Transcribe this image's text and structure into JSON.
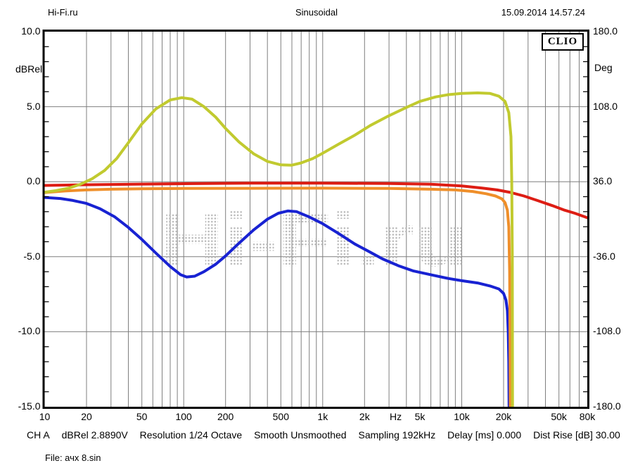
{
  "header": {
    "site": "Hi-Fi.ru",
    "measurement": "Sinusoidal",
    "datetime": "15.09.2014 14.57.24"
  },
  "clio_badge": "CLIO",
  "watermark": {
    "text": "Hi-Fi.ru",
    "color": "#b7b7b7"
  },
  "status_bar": {
    "fields": [
      "CH A",
      "dBRel 2.8890V",
      "Resolution 1/24 Octave",
      "Smooth Unsmoothed",
      "Sampling 192kHz",
      "Delay [ms] 0.000",
      "Dist Rise [dB] 30.00"
    ]
  },
  "file_line": "File: ачх 8.sin",
  "chart_data": {
    "type": "line",
    "x_scale": "log",
    "grid": true,
    "legend": "none",
    "colors": {
      "grid": "#7f7f7f",
      "frame": "#000000"
    },
    "x_axis": {
      "unit": "Hz",
      "min": 10,
      "max": 80000,
      "ticks": [
        {
          "f": 10,
          "label": "10"
        },
        {
          "f": 20,
          "label": "20"
        },
        {
          "f": 50,
          "label": "50"
        },
        {
          "f": 100,
          "label": "100"
        },
        {
          "f": 200,
          "label": "200"
        },
        {
          "f": 500,
          "label": "500"
        },
        {
          "f": 1000,
          "label": "1k"
        },
        {
          "f": 2000,
          "label": "2k"
        },
        {
          "f": 3350,
          "label": "Hz",
          "unit": true
        },
        {
          "f": 5000,
          "label": "5k"
        },
        {
          "f": 10000,
          "label": "10k"
        },
        {
          "f": 20000,
          "label": "20k"
        },
        {
          "f": 50000,
          "label": "50k"
        },
        {
          "f": 80000,
          "label": "80k"
        }
      ]
    },
    "left_axis": {
      "unit": "dBRel",
      "min": -15,
      "max": 10,
      "ticks": [
        {
          "value": 10,
          "label": "10.0"
        },
        {
          "value": 5,
          "label": "5.0"
        },
        {
          "value": 0,
          "label": "0.0"
        },
        {
          "value": -5,
          "label": "-5.0"
        },
        {
          "value": -10,
          "label": "-10.0"
        },
        {
          "value": -15,
          "label": "-15.0"
        }
      ]
    },
    "right_axis": {
      "unit": "Deg",
      "min": -180,
      "max": 180,
      "ticks": [
        {
          "value": 180,
          "label": "180.0"
        },
        {
          "value": 108,
          "label": "108.0"
        },
        {
          "value": 36,
          "label": "36.0"
        },
        {
          "value": -36,
          "label": "-36.0"
        },
        {
          "value": -108,
          "label": "-108.0"
        },
        {
          "value": -180,
          "label": "-180.0"
        }
      ]
    },
    "series": [
      {
        "name": "blue",
        "color": "#1822d2",
        "axis": "left",
        "points": [
          [
            10,
            -1.05
          ],
          [
            13,
            -1.12
          ],
          [
            16,
            -1.25
          ],
          [
            20,
            -1.45
          ],
          [
            25,
            -1.8
          ],
          [
            32,
            -2.35
          ],
          [
            40,
            -3.05
          ],
          [
            50,
            -3.85
          ],
          [
            63,
            -4.75
          ],
          [
            80,
            -5.65
          ],
          [
            95,
            -6.2
          ],
          [
            105,
            -6.35
          ],
          [
            120,
            -6.3
          ],
          [
            140,
            -6.0
          ],
          [
            170,
            -5.5
          ],
          [
            200,
            -4.95
          ],
          [
            250,
            -4.1
          ],
          [
            320,
            -3.2
          ],
          [
            400,
            -2.5
          ],
          [
            480,
            -2.1
          ],
          [
            560,
            -1.95
          ],
          [
            650,
            -2.0
          ],
          [
            800,
            -2.35
          ],
          [
            1000,
            -2.8
          ],
          [
            1300,
            -3.45
          ],
          [
            1700,
            -4.15
          ],
          [
            2100,
            -4.6
          ],
          [
            2700,
            -5.15
          ],
          [
            3500,
            -5.6
          ],
          [
            4500,
            -5.95
          ],
          [
            6000,
            -6.2
          ],
          [
            8000,
            -6.45
          ],
          [
            10000,
            -6.6
          ],
          [
            13000,
            -6.75
          ],
          [
            16000,
            -6.95
          ],
          [
            18500,
            -7.15
          ],
          [
            20000,
            -7.45
          ],
          [
            20800,
            -7.9
          ],
          [
            21300,
            -8.6
          ],
          [
            21600,
            -10
          ],
          [
            21800,
            -12
          ],
          [
            21900,
            -15
          ]
        ]
      },
      {
        "name": "orange",
        "color": "#ef8f2a",
        "axis": "left",
        "points": [
          [
            10,
            -0.72
          ],
          [
            14,
            -0.62
          ],
          [
            20,
            -0.55
          ],
          [
            30,
            -0.5
          ],
          [
            50,
            -0.47
          ],
          [
            100,
            -0.45
          ],
          [
            300,
            -0.44
          ],
          [
            1000,
            -0.43
          ],
          [
            3000,
            -0.45
          ],
          [
            6000,
            -0.5
          ],
          [
            9000,
            -0.55
          ],
          [
            12000,
            -0.65
          ],
          [
            15000,
            -0.8
          ],
          [
            17500,
            -0.95
          ],
          [
            19500,
            -1.15
          ],
          [
            20500,
            -1.4
          ],
          [
            21300,
            -1.9
          ],
          [
            21800,
            -3.0
          ],
          [
            22100,
            -6
          ],
          [
            22250,
            -10
          ],
          [
            22350,
            -15
          ]
        ]
      },
      {
        "name": "red",
        "color": "#dd1d14",
        "axis": "left",
        "points": [
          [
            10,
            -0.25
          ],
          [
            20,
            -0.2
          ],
          [
            50,
            -0.16
          ],
          [
            100,
            -0.13
          ],
          [
            300,
            -0.1
          ],
          [
            1000,
            -0.1
          ],
          [
            3000,
            -0.12
          ],
          [
            6000,
            -0.17
          ],
          [
            10000,
            -0.28
          ],
          [
            14000,
            -0.42
          ],
          [
            18000,
            -0.55
          ],
          [
            22000,
            -0.7
          ],
          [
            28000,
            -0.95
          ],
          [
            35000,
            -1.25
          ],
          [
            45000,
            -1.6
          ],
          [
            55000,
            -1.9
          ],
          [
            65000,
            -2.1
          ],
          [
            80000,
            -2.4
          ]
        ]
      },
      {
        "name": "yellow-green",
        "color": "#c1ca2f",
        "axis": "left",
        "points": [
          [
            10,
            -0.7
          ],
          [
            12,
            -0.6
          ],
          [
            15,
            -0.42
          ],
          [
            18,
            -0.18
          ],
          [
            22,
            0.2
          ],
          [
            27,
            0.75
          ],
          [
            33,
            1.55
          ],
          [
            40,
            2.6
          ],
          [
            50,
            3.85
          ],
          [
            63,
            4.85
          ],
          [
            80,
            5.45
          ],
          [
            97,
            5.6
          ],
          [
            115,
            5.5
          ],
          [
            140,
            5.0
          ],
          [
            170,
            4.3
          ],
          [
            200,
            3.55
          ],
          [
            250,
            2.65
          ],
          [
            320,
            1.85
          ],
          [
            400,
            1.35
          ],
          [
            500,
            1.12
          ],
          [
            600,
            1.1
          ],
          [
            700,
            1.25
          ],
          [
            850,
            1.55
          ],
          [
            1000,
            1.9
          ],
          [
            1300,
            2.5
          ],
          [
            1700,
            3.1
          ],
          [
            2200,
            3.75
          ],
          [
            3000,
            4.4
          ],
          [
            4000,
            4.95
          ],
          [
            5000,
            5.35
          ],
          [
            6500,
            5.65
          ],
          [
            8000,
            5.8
          ],
          [
            10000,
            5.88
          ],
          [
            13000,
            5.92
          ],
          [
            16000,
            5.88
          ],
          [
            18500,
            5.7
          ],
          [
            20500,
            5.35
          ],
          [
            21800,
            4.6
          ],
          [
            22600,
            3.0
          ],
          [
            22900,
            0
          ],
          [
            23100,
            -5
          ],
          [
            23200,
            -15
          ]
        ]
      }
    ]
  }
}
